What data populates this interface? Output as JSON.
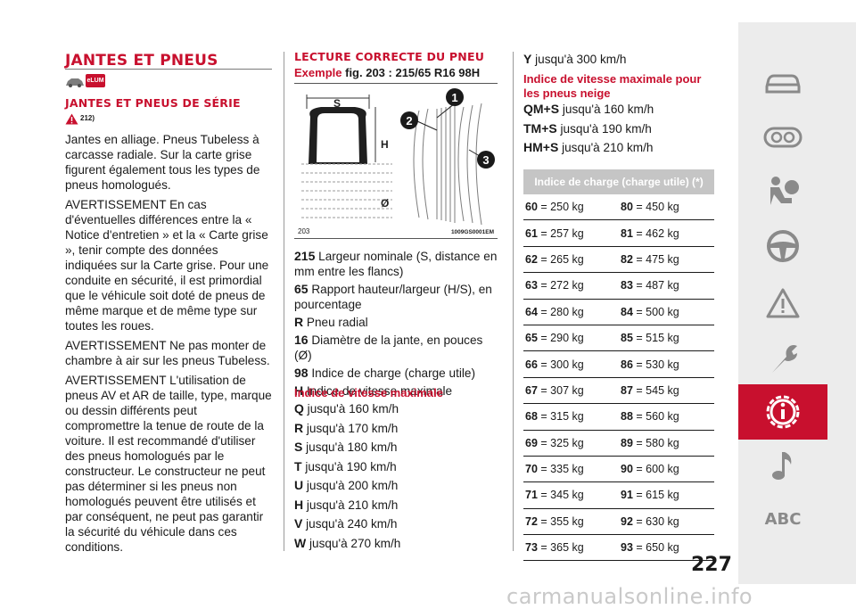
{
  "col1": {
    "section_title": "JANTES ET PNEUS",
    "elum_badge": "eLUM",
    "subsection_title": "JANTES ET PNEUS DE SÉRIE",
    "ref": "212)",
    "paragraphs": [
      "Jantes en alliage. Pneus Tubeless à carcasse radiale. Sur la carte grise figurent également tous les types de pneus homologués.",
      "AVERTISSEMENT En cas d'éventuelles différences entre la « Notice d'entretien » et la « Carte grise », tenir compte des données indiquées sur la Carte grise. Pour une conduite en sécurité, il est primordial que le véhicule soit doté de pneus de même marque et de même type sur toutes les roues.",
      "AVERTISSEMENT Ne pas monter de chambre à air sur les pneus Tubeless.",
      "AVERTISSEMENT L'utilisation de pneus AV et AR de taille, type, marque ou dessin différents peut compromettre la tenue de route de la voiture. Il est recommandé d'utiliser des pneus homologués par le constructeur. Le constructeur ne peut pas déterminer si les pneus non homologués peuvent être utilisés et par conséquent, ne peut pas garantir la sécurité du véhicule dans ces conditions."
    ]
  },
  "col2": {
    "title": "LECTURE CORRECTE DU PNEU",
    "example_label": "Exemple",
    "example_value": "fig. 203 : 215/65 R16 98H",
    "figure": {
      "label_s": "S",
      "label_h": "H",
      "label_o": "Ø",
      "callouts": [
        "1",
        "2",
        "3"
      ],
      "fig_number": "203",
      "fig_code": "1009GS0001EM"
    },
    "legend": [
      {
        "key": "215",
        "text": "Largeur nominale (S, distance en mm entre les flancs)"
      },
      {
        "key": "65",
        "text": "Rapport hauteur/largeur (H/S), en pourcentage"
      },
      {
        "key": "R",
        "text": "Pneu radial"
      },
      {
        "key": "16",
        "text": "Diamètre de la jante, en pouces (Ø)"
      },
      {
        "key": "98",
        "text": "Indice de charge (charge utile)"
      },
      {
        "key": "H",
        "text": "Indice de vitesse maximale"
      }
    ],
    "speed_title": "Indice de vitesse maximale",
    "speeds": [
      {
        "key": "Q",
        "text": "jusqu'à 160 km/h"
      },
      {
        "key": "R",
        "text": "jusqu'à 170 km/h"
      },
      {
        "key": "S",
        "text": "jusqu'à 180 km/h"
      },
      {
        "key": "T",
        "text": "jusqu'à 190 km/h"
      },
      {
        "key": "U",
        "text": "jusqu'à 200 km/h"
      },
      {
        "key": "H",
        "text": "jusqu'à 210 km/h"
      },
      {
        "key": "V",
        "text": "jusqu'à 240 km/h"
      },
      {
        "key": "W",
        "text": "jusqu'à 270 km/h"
      }
    ]
  },
  "col3": {
    "top_speed": {
      "key": "Y",
      "text": "jusqu'à 300 km/h"
    },
    "snow_title": "Indice de vitesse maximale pour les pneus neige",
    "snow_speeds": [
      {
        "key": "QM+S",
        "text": "jusqu'à 160 km/h"
      },
      {
        "key": "TM+S",
        "text": "jusqu'à 190 km/h"
      },
      {
        "key": "HM+S",
        "text": "jusqu'à 210 km/h"
      }
    ],
    "table_header": "Indice de charge (charge utile) (*)",
    "table_rows": [
      {
        "a": "60",
        "av": "= 250 kg",
        "b": "80",
        "bv": "= 450 kg"
      },
      {
        "a": "61",
        "av": "= 257 kg",
        "b": "81",
        "bv": "= 462 kg"
      },
      {
        "a": "62",
        "av": "= 265 kg",
        "b": "82",
        "bv": "= 475 kg"
      },
      {
        "a": "63",
        "av": "= 272 kg",
        "b": "83",
        "bv": "= 487 kg"
      },
      {
        "a": "64",
        "av": "= 280 kg",
        "b": "84",
        "bv": "= 500 kg"
      },
      {
        "a": "65",
        "av": "= 290 kg",
        "b": "85",
        "bv": "= 515 kg"
      },
      {
        "a": "66",
        "av": "= 300 kg",
        "b": "86",
        "bv": "= 530 kg"
      },
      {
        "a": "67",
        "av": "= 307 kg",
        "b": "87",
        "bv": "= 545 kg"
      },
      {
        "a": "68",
        "av": "= 315 kg",
        "b": "88",
        "bv": "= 560 kg"
      },
      {
        "a": "69",
        "av": "= 325 kg",
        "b": "89",
        "bv": "= 580 kg"
      },
      {
        "a": "70",
        "av": "= 335 kg",
        "b": "90",
        "bv": "= 600 kg"
      },
      {
        "a": "71",
        "av": "= 345 kg",
        "b": "91",
        "bv": "= 615 kg"
      },
      {
        "a": "72",
        "av": "= 355 kg",
        "b": "92",
        "bv": "= 630 kg"
      },
      {
        "a": "73",
        "av": "= 365 kg",
        "b": "93",
        "bv": "= 650 kg"
      }
    ]
  },
  "page_number": "227",
  "sidebar": {
    "items": [
      "car-icon",
      "dashboard-icon",
      "airbag-icon",
      "steering-wheel-icon",
      "warning-triangle-icon",
      "wrench-icon",
      "info-gear-icon",
      "music-note-icon"
    ],
    "active": "info-gear-icon",
    "abc_label": "ABC"
  },
  "watermark": "carmanualsonline.info",
  "colors": {
    "accent": "#c8102e",
    "sidebar_bg": "#ececec",
    "icon_gray": "#8a8a8a"
  }
}
